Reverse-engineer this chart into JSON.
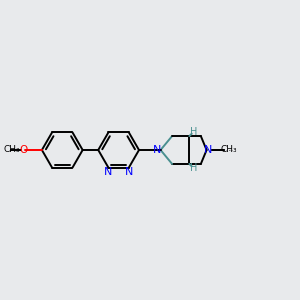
{
  "background_color": "#e8eaec",
  "bond_color": "#000000",
  "nitrogen_color": "#0000ff",
  "oxygen_color": "#ff0000",
  "stereo_h_color": "#4a9090",
  "line_width": 1.4,
  "fig_width": 3.0,
  "fig_height": 3.0,
  "xlim": [
    0,
    12
  ],
  "ylim": [
    0,
    10
  ]
}
